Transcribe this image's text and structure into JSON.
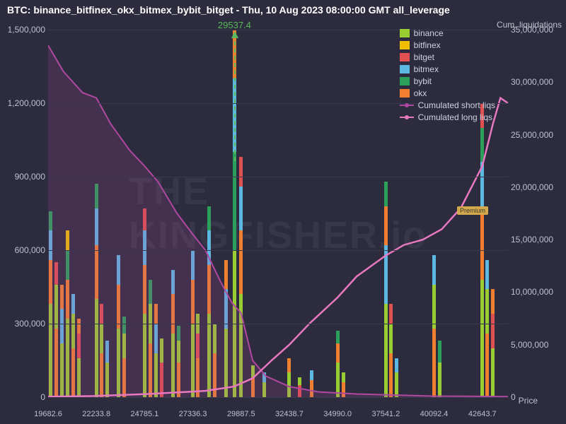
{
  "title": "BTC: binance_bitfinex_okx_bitmex_bybit_bitget - Thu, 10 Aug 2023 08:00:00 GMT all_leverage",
  "annotation": {
    "label": "29537.4",
    "x_value": 29537.4
  },
  "watermark": "THE KINGFISHER.io",
  "premium_badge": "Premium",
  "background_color": "#2c2c3e",
  "grid_color": "#3a3a4e",
  "chart": {
    "type": "stacked-bar + dual-line",
    "x_title": "Price",
    "y_right_title": "Cum. liquidations",
    "xlim": [
      19682.6,
      44000
    ],
    "x_ticks": [
      19682.6,
      22233.8,
      24785.1,
      27336.3,
      29887.5,
      32438.7,
      34990.0,
      37541.2,
      40092.4,
      42643.7
    ],
    "y_left": {
      "lim": [
        0,
        1500000
      ],
      "ticks": [
        0,
        300000,
        600000,
        900000,
        1200000,
        1500000
      ]
    },
    "y_right": {
      "lim": [
        0,
        35000000
      ],
      "ticks": [
        0,
        5000000,
        10000000,
        15000000,
        20000000,
        25000000,
        30000000,
        35000000
      ]
    },
    "series_colors": {
      "binance": "#9acd32",
      "bitfinex": "#f0c000",
      "bitget": "#e05050",
      "bitmex": "#5cb8e0",
      "bybit": "#2ca05a",
      "okx": "#f08030"
    },
    "line_colors": {
      "short": "#b048a0",
      "long": "#e878c0"
    },
    "legend": [
      {
        "type": "swatch",
        "key": "binance",
        "label": "binance"
      },
      {
        "type": "swatch",
        "key": "bitfinex",
        "label": "bitfinex"
      },
      {
        "type": "swatch",
        "key": "bitget",
        "label": "bitget"
      },
      {
        "type": "swatch",
        "key": "bitmex",
        "label": "bitmex"
      },
      {
        "type": "swatch",
        "key": "bybit",
        "label": "bybit"
      },
      {
        "type": "swatch",
        "key": "okx",
        "label": "okx"
      },
      {
        "type": "line",
        "key": "short",
        "label": "Cumulated short liqs"
      },
      {
        "type": "line",
        "key": "long",
        "label": "Cumulated long liqs"
      }
    ],
    "short_line": [
      [
        19682.6,
        33500000
      ],
      [
        20500,
        31000000
      ],
      [
        21500,
        29000000
      ],
      [
        22233.8,
        28500000
      ],
      [
        23000,
        26000000
      ],
      [
        24000,
        23500000
      ],
      [
        24785.1,
        22000000
      ],
      [
        25500,
        20500000
      ],
      [
        26500,
        17500000
      ],
      [
        27336.3,
        15500000
      ],
      [
        28000,
        14000000
      ],
      [
        28800,
        11000000
      ],
      [
        29400,
        9000000
      ],
      [
        29887.5,
        8000000
      ],
      [
        30500,
        3500000
      ],
      [
        31200,
        2000000
      ],
      [
        32438.7,
        1000000
      ],
      [
        34000,
        500000
      ],
      [
        36000,
        300000
      ],
      [
        38000,
        200000
      ],
      [
        40000,
        100000
      ],
      [
        42000,
        80000
      ],
      [
        44000,
        50000
      ]
    ],
    "long_line": [
      [
        19682.6,
        50000
      ],
      [
        22000,
        100000
      ],
      [
        25000,
        300000
      ],
      [
        28000,
        600000
      ],
      [
        29500,
        1000000
      ],
      [
        30500,
        1800000
      ],
      [
        31500,
        3500000
      ],
      [
        32438.7,
        5000000
      ],
      [
        33500,
        7000000
      ],
      [
        34990,
        9500000
      ],
      [
        36000,
        11500000
      ],
      [
        37541.2,
        13500000
      ],
      [
        38500,
        14500000
      ],
      [
        39500,
        15000000
      ],
      [
        40500,
        16000000
      ],
      [
        41500,
        18000000
      ],
      [
        42643.7,
        22000000
      ],
      [
        43200,
        26000000
      ],
      [
        43600,
        28500000
      ],
      [
        44000,
        28000000
      ]
    ],
    "bars": [
      {
        "x": 19800,
        "stacks": [
          [
            "binance",
            380000
          ],
          [
            "okx",
            180000
          ],
          [
            "bitmex",
            120000
          ],
          [
            "bybit",
            80000
          ]
        ]
      },
      {
        "x": 20100,
        "stacks": [
          [
            "okx",
            280000
          ],
          [
            "binance",
            180000
          ],
          [
            "bitget",
            90000
          ]
        ]
      },
      {
        "x": 20400,
        "stacks": [
          [
            "binance",
            220000
          ],
          [
            "bitmex",
            140000
          ],
          [
            "okx",
            100000
          ]
        ]
      },
      {
        "x": 20700,
        "stacks": [
          [
            "binance",
            320000
          ],
          [
            "okx",
            160000
          ],
          [
            "bybit",
            120000
          ],
          [
            "bitfinex",
            80000
          ]
        ]
      },
      {
        "x": 21000,
        "stacks": [
          [
            "okx",
            200000
          ],
          [
            "binance",
            140000
          ],
          [
            "bitmex",
            80000
          ]
        ]
      },
      {
        "x": 21300,
        "stacks": [
          [
            "binance",
            160000
          ],
          [
            "bitget",
            100000
          ],
          [
            "okx",
            60000
          ]
        ]
      },
      {
        "x": 22233,
        "stacks": [
          [
            "binance",
            400000
          ],
          [
            "okx",
            220000
          ],
          [
            "bitmex",
            150000
          ],
          [
            "bybit",
            100000
          ]
        ]
      },
      {
        "x": 22500,
        "stacks": [
          [
            "okx",
            180000
          ],
          [
            "binance",
            120000
          ],
          [
            "bitget",
            80000
          ]
        ]
      },
      {
        "x": 22800,
        "stacks": [
          [
            "binance",
            140000
          ],
          [
            "bitmex",
            90000
          ]
        ]
      },
      {
        "x": 23400,
        "stacks": [
          [
            "binance",
            280000
          ],
          [
            "okx",
            180000
          ],
          [
            "bitmex",
            120000
          ]
        ]
      },
      {
        "x": 23700,
        "stacks": [
          [
            "okx",
            160000
          ],
          [
            "binance",
            100000
          ],
          [
            "bybit",
            70000
          ]
        ]
      },
      {
        "x": 24785,
        "stacks": [
          [
            "binance",
            340000
          ],
          [
            "okx",
            200000
          ],
          [
            "bitmex",
            140000
          ],
          [
            "bitget",
            90000
          ]
        ]
      },
      {
        "x": 25100,
        "stacks": [
          [
            "okx",
            220000
          ],
          [
            "binance",
            160000
          ],
          [
            "bybit",
            100000
          ]
        ]
      },
      {
        "x": 25400,
        "stacks": [
          [
            "binance",
            180000
          ],
          [
            "bitmex",
            120000
          ],
          [
            "okx",
            80000
          ]
        ]
      },
      {
        "x": 25700,
        "stacks": [
          [
            "bitget",
            140000
          ],
          [
            "binance",
            100000
          ]
        ]
      },
      {
        "x": 26300,
        "stacks": [
          [
            "binance",
            260000
          ],
          [
            "okx",
            160000
          ],
          [
            "bitmex",
            100000
          ]
        ]
      },
      {
        "x": 26600,
        "stacks": [
          [
            "okx",
            140000
          ],
          [
            "binance",
            90000
          ],
          [
            "bybit",
            60000
          ]
        ]
      },
      {
        "x": 27336,
        "stacks": [
          [
            "binance",
            300000
          ],
          [
            "okx",
            180000
          ],
          [
            "bitmex",
            120000
          ]
        ]
      },
      {
        "x": 27600,
        "stacks": [
          [
            "okx",
            160000
          ],
          [
            "bitget",
            100000
          ],
          [
            "binance",
            80000
          ]
        ]
      },
      {
        "x": 28200,
        "stacks": [
          [
            "binance",
            340000
          ],
          [
            "okx",
            200000
          ],
          [
            "bitmex",
            140000
          ],
          [
            "bybit",
            100000
          ]
        ]
      },
      {
        "x": 28500,
        "stacks": [
          [
            "okx",
            180000
          ],
          [
            "binance",
            120000
          ]
        ]
      },
      {
        "x": 29100,
        "stacks": [
          [
            "binance",
            280000
          ],
          [
            "bitmex",
            160000
          ],
          [
            "okx",
            120000
          ]
        ]
      },
      {
        "x": 29537,
        "stacks": [
          [
            "binance",
            600000
          ],
          [
            "bybit",
            400000
          ],
          [
            "bitmex",
            300000
          ],
          [
            "okx",
            200000
          ]
        ]
      },
      {
        "x": 29887,
        "stacks": [
          [
            "binance",
            420000
          ],
          [
            "okx",
            260000
          ],
          [
            "bitmex",
            180000
          ],
          [
            "bitget",
            120000
          ]
        ]
      },
      {
        "x": 30500,
        "stacks": [
          [
            "okx",
            80000
          ],
          [
            "binance",
            50000
          ]
        ]
      },
      {
        "x": 31100,
        "stacks": [
          [
            "binance",
            60000
          ],
          [
            "bitmex",
            40000
          ]
        ]
      },
      {
        "x": 32438,
        "stacks": [
          [
            "binance",
            100000
          ],
          [
            "okx",
            60000
          ]
        ]
      },
      {
        "x": 33000,
        "stacks": [
          [
            "bitget",
            50000
          ],
          [
            "binance",
            30000
          ]
        ]
      },
      {
        "x": 33600,
        "stacks": [
          [
            "okx",
            70000
          ],
          [
            "bitmex",
            40000
          ]
        ]
      },
      {
        "x": 34990,
        "stacks": [
          [
            "binance",
            140000
          ],
          [
            "okx",
            80000
          ],
          [
            "bybit",
            50000
          ]
        ]
      },
      {
        "x": 35300,
        "stacks": [
          [
            "okx",
            60000
          ],
          [
            "binance",
            40000
          ]
        ]
      },
      {
        "x": 37541,
        "stacks": [
          [
            "binance",
            380000
          ],
          [
            "bitmex",
            240000
          ],
          [
            "okx",
            160000
          ],
          [
            "bybit",
            100000
          ]
        ]
      },
      {
        "x": 37800,
        "stacks": [
          [
            "okx",
            180000
          ],
          [
            "binance",
            120000
          ],
          [
            "bitget",
            80000
          ]
        ]
      },
      {
        "x": 38100,
        "stacks": [
          [
            "binance",
            100000
          ],
          [
            "bitmex",
            60000
          ]
        ]
      },
      {
        "x": 40092,
        "stacks": [
          [
            "okx",
            280000
          ],
          [
            "binance",
            180000
          ],
          [
            "bitmex",
            120000
          ]
        ]
      },
      {
        "x": 40400,
        "stacks": [
          [
            "binance",
            140000
          ],
          [
            "bybit",
            90000
          ]
        ]
      },
      {
        "x": 42643,
        "stacks": [
          [
            "binance",
            480000
          ],
          [
            "okx",
            280000
          ],
          [
            "bitmex",
            200000
          ],
          [
            "bybit",
            140000
          ],
          [
            "bitget",
            100000
          ]
        ]
      },
      {
        "x": 42900,
        "stacks": [
          [
            "okx",
            260000
          ],
          [
            "binance",
            180000
          ],
          [
            "bitmex",
            120000
          ]
        ]
      },
      {
        "x": 43200,
        "stacks": [
          [
            "binance",
            200000
          ],
          [
            "bitget",
            140000
          ],
          [
            "okx",
            100000
          ]
        ]
      }
    ]
  }
}
